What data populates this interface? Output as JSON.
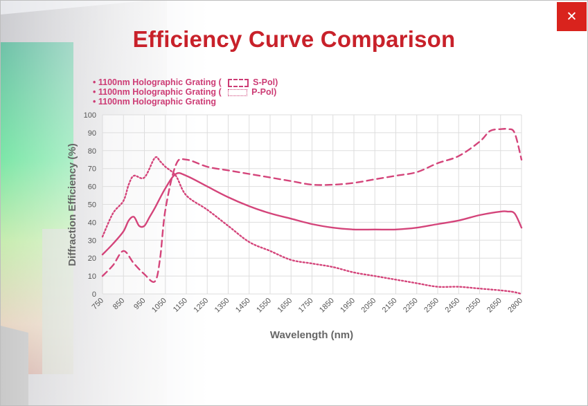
{
  "dialog": {
    "title": "Efficiency Curve Comparison",
    "close_glyph": "✕",
    "close_icon": "close-icon",
    "accent_color": "#d9231d",
    "title_color": "#c8212a"
  },
  "chart_data": {
    "type": "line",
    "title": "Efficiency Curve Comparison",
    "xlabel": "Wavelength (nm)",
    "ylabel": "Diffraction Efficiency (%)",
    "xlim": [
      750,
      2800
    ],
    "ylim": [
      0,
      100
    ],
    "grid": true,
    "legend_position": "top-left",
    "x_ticks": [
      "750",
      "850",
      "950",
      "1050",
      "1150",
      "1250",
      "1350",
      "1450",
      "1550",
      "1650",
      "1750",
      "1850",
      "1950",
      "2050",
      "2150",
      "2250",
      "2350",
      "2450",
      "2550",
      "2650",
      "2800"
    ],
    "y_ticks": [
      "0",
      "10",
      "20",
      "30",
      "40",
      "50",
      "60",
      "70",
      "80",
      "90",
      "100"
    ],
    "line_color": "#d4447a",
    "legend": [
      {
        "text": "1100nm Holographic Grating (",
        "pol": "S-Pol)",
        "swatch": "dashed"
      },
      {
        "text": "1100nm Holographic Grating (",
        "pol": "P-Pol)",
        "swatch": "dotted"
      },
      {
        "text": "1100nm Holographic Grating",
        "pol": "",
        "swatch": "none"
      }
    ],
    "series": [
      {
        "name": "1100nm Holographic Grating ( S-Pol)",
        "style": "dashed",
        "x": [
          750,
          800,
          850,
          900,
          950,
          1000,
          1025,
          1050,
          1100,
          1150,
          1250,
          1350,
          1450,
          1550,
          1650,
          1750,
          1850,
          1950,
          2050,
          2150,
          2250,
          2350,
          2450,
          2550,
          2600,
          2650,
          2700,
          2750,
          2800
        ],
        "y": [
          10,
          16,
          24,
          17,
          11,
          7,
          20,
          47,
          72,
          75,
          71,
          69,
          67,
          65,
          63,
          61,
          61,
          62,
          64,
          66,
          68,
          73,
          77,
          85,
          91,
          92,
          92,
          90,
          75
        ]
      },
      {
        "name": "1100nm Holographic Grating ( P-Pol)",
        "style": "dotted",
        "x": [
          750,
          800,
          850,
          875,
          900,
          950,
          1000,
          1025,
          1050,
          1100,
          1150,
          1250,
          1350,
          1450,
          1550,
          1650,
          1750,
          1850,
          1950,
          2050,
          2150,
          2250,
          2350,
          2450,
          2550,
          2650,
          2750,
          2800
        ],
        "y": [
          32,
          45,
          52,
          61,
          66,
          65,
          76,
          74,
          71,
          66,
          55,
          47,
          38,
          29,
          24,
          19,
          17,
          15,
          12,
          10,
          8,
          6,
          4,
          4,
          3,
          2,
          1,
          0
        ]
      },
      {
        "name": "1100nm Holographic Grating",
        "style": "solid",
        "x": [
          750,
          800,
          850,
          875,
          900,
          925,
          950,
          975,
          1000,
          1050,
          1100,
          1150,
          1250,
          1350,
          1450,
          1550,
          1650,
          1750,
          1850,
          1950,
          2050,
          2150,
          2250,
          2350,
          2450,
          2550,
          2650,
          2700,
          2750,
          2800
        ],
        "y": [
          22,
          28,
          35,
          41,
          43,
          38,
          38,
          43,
          48,
          59,
          67,
          66,
          60,
          54,
          49,
          45,
          42,
          39,
          37,
          36,
          36,
          36,
          37,
          39,
          41,
          44,
          46,
          46,
          45,
          37
        ]
      }
    ]
  }
}
